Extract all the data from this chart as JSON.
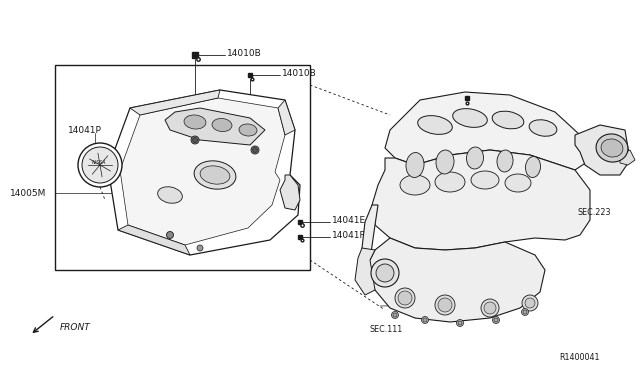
{
  "bg_color": "#ffffff",
  "line_color": "#1a1a1a",
  "gray_fill": "#f0f0f0",
  "dark_gray": "#c8c8c8",
  "font_size": 6.5,
  "font_size_small": 5.8,
  "labels": {
    "14010B_top": "14010B",
    "14010B_mid": "14010B",
    "14041P": "14041P",
    "14005M": "14005M",
    "14041E": "14041E",
    "14041F": "14041F",
    "SEC223": "SEC.223",
    "SEC111": "SEC.111",
    "FRONT": "FRONT",
    "R1400041": "R1400041"
  }
}
